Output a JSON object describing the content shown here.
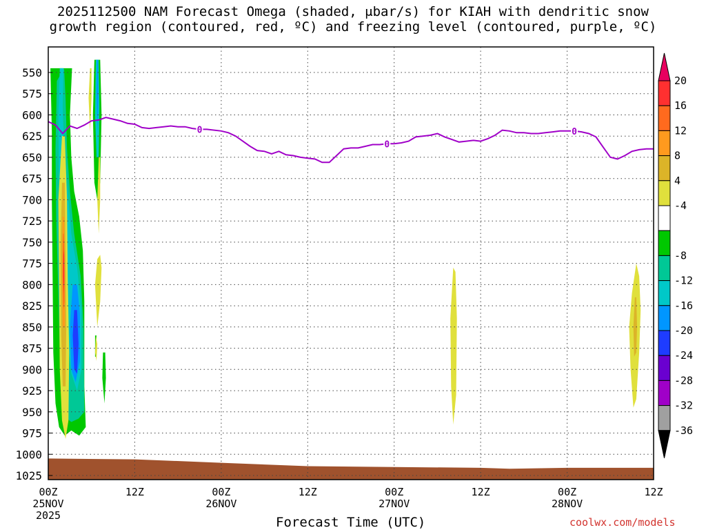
{
  "title_line1": "2025112500 NAM Forecast Omega (shaded, μbar/s) for KIAH with dendritic snow",
  "title_line2": "growth region (contoured, red, ºC) and freezing level (contoured, purple, ºC)",
  "xlabel": "Forecast Time (UTC)",
  "credit": "coolwx.com/models",
  "colors": {
    "freezing_level": "#a000c8",
    "ground": "#a0522d",
    "grid": "#9a9a9a"
  },
  "chart_data": {
    "type": "heatmap",
    "y_axis": {
      "label": "",
      "scale": "pressure (reversed)",
      "range_hpa": [
        1035,
        530
      ],
      "ticks": [
        "550",
        "575",
        "600",
        "625",
        "650",
        "675",
        "700",
        "725",
        "750",
        "775",
        "800",
        "825",
        "850",
        "875",
        "900",
        "925",
        "950",
        "975",
        "1000",
        "1025"
      ]
    },
    "x_axis": {
      "range_hours": [
        0,
        84
      ],
      "ticks": [
        {
          "h": 0,
          "l1": "00Z",
          "l2": "25NOV",
          "l3": "2025"
        },
        {
          "h": 12,
          "l1": "12Z",
          "l2": "",
          "l3": ""
        },
        {
          "h": 24,
          "l1": "00Z",
          "l2": "26NOV",
          "l3": ""
        },
        {
          "h": 36,
          "l1": "12Z",
          "l2": "",
          "l3": ""
        },
        {
          "h": 48,
          "l1": "00Z",
          "l2": "27NOV",
          "l3": ""
        },
        {
          "h": 60,
          "l1": "12Z",
          "l2": "",
          "l3": ""
        },
        {
          "h": 72,
          "l1": "00Z",
          "l2": "28NOV",
          "l3": ""
        },
        {
          "h": 84,
          "l1": "12Z",
          "l2": "",
          "l3": ""
        }
      ]
    },
    "colorbar": {
      "labels": [
        "20",
        "16",
        "12",
        "8",
        "4",
        "-4",
        "-8",
        "-12",
        "-16",
        "-20",
        "-24",
        "-28",
        "-32",
        "-36"
      ],
      "colors": [
        "#e8005f",
        "#ff3030",
        "#ff6a1e",
        "#ff9a1e",
        "#dcb428",
        "#e0e03c",
        "#ffffff",
        "#00c800",
        "#00c896",
        "#00c8c8",
        "#0096ff",
        "#1e3cff",
        "#6a00d0",
        "#a000c8",
        "#a0a0a0",
        "#000000"
      ]
    },
    "freezing_level": {
      "label": "0",
      "label_hours": [
        21,
        47,
        73
      ],
      "points": [
        [
          0,
          608
        ],
        [
          1,
          612
        ],
        [
          2,
          622
        ],
        [
          3,
          613
        ],
        [
          4,
          616
        ],
        [
          5,
          612
        ],
        [
          6,
          607
        ],
        [
          7,
          606
        ],
        [
          8,
          603
        ],
        [
          9,
          605
        ],
        [
          10,
          607
        ],
        [
          11,
          610
        ],
        [
          12,
          611
        ],
        [
          13,
          615
        ],
        [
          14,
          616
        ],
        [
          15,
          615
        ],
        [
          16,
          614
        ],
        [
          17,
          613
        ],
        [
          18,
          614
        ],
        [
          19,
          614
        ],
        [
          20,
          616
        ],
        [
          21,
          617
        ],
        [
          22,
          617
        ],
        [
          24,
          619
        ],
        [
          25,
          621
        ],
        [
          26,
          625
        ],
        [
          27,
          631
        ],
        [
          28,
          637
        ],
        [
          29,
          642
        ],
        [
          30,
          643
        ],
        [
          31,
          646
        ],
        [
          32,
          643
        ],
        [
          33,
          647
        ],
        [
          34,
          648
        ],
        [
          35,
          650
        ],
        [
          36,
          651
        ],
        [
          37,
          652
        ],
        [
          38,
          656
        ],
        [
          39,
          656
        ],
        [
          40,
          648
        ],
        [
          41,
          640
        ],
        [
          42,
          639
        ],
        [
          43,
          639
        ],
        [
          44,
          637
        ],
        [
          45,
          635
        ],
        [
          46,
          635
        ],
        [
          47,
          634
        ],
        [
          48,
          634
        ],
        [
          49,
          633
        ],
        [
          50,
          631
        ],
        [
          51,
          626
        ],
        [
          52,
          625
        ],
        [
          53,
          624
        ],
        [
          54,
          622
        ],
        [
          55,
          626
        ],
        [
          56,
          629
        ],
        [
          57,
          632
        ],
        [
          58,
          631
        ],
        [
          59,
          630
        ],
        [
          60,
          631
        ],
        [
          61,
          628
        ],
        [
          62,
          624
        ],
        [
          63,
          618
        ],
        [
          64,
          619
        ],
        [
          65,
          621
        ],
        [
          66,
          621
        ],
        [
          67,
          622
        ],
        [
          68,
          622
        ],
        [
          69,
          621
        ],
        [
          70,
          620
        ],
        [
          71,
          619
        ],
        [
          72,
          619
        ],
        [
          73,
          619
        ],
        [
          74,
          620
        ],
        [
          75,
          622
        ],
        [
          76,
          626
        ],
        [
          77,
          638
        ],
        [
          78,
          650
        ],
        [
          79,
          652
        ],
        [
          80,
          648
        ],
        [
          81,
          643
        ],
        [
          82,
          641
        ],
        [
          83,
          640
        ],
        [
          84,
          640
        ]
      ]
    },
    "ground_pressure": [
      [
        0,
        1005
      ],
      [
        12,
        1006
      ],
      [
        24,
        1010
      ],
      [
        36,
        1014
      ],
      [
        48,
        1015
      ],
      [
        60,
        1016
      ],
      [
        64,
        1017
      ],
      [
        72,
        1016
      ],
      [
        84,
        1016
      ]
    ],
    "omega_regions": [
      {
        "level": -8,
        "color": "#00c800",
        "pts": [
          [
            0.3,
            545
          ],
          [
            0.5,
            620
          ],
          [
            0.5,
            700
          ],
          [
            0.6,
            790
          ],
          [
            0.7,
            880
          ],
          [
            1.0,
            940
          ],
          [
            1.5,
            968
          ],
          [
            2.3,
            978
          ],
          [
            3.2,
            972
          ],
          [
            4.3,
            978
          ],
          [
            5.2,
            968
          ],
          [
            5.0,
            920
          ],
          [
            5.0,
            820
          ],
          [
            4.8,
            760
          ],
          [
            4.3,
            720
          ],
          [
            3.6,
            690
          ],
          [
            3.2,
            650
          ],
          [
            3.0,
            600
          ],
          [
            3.3,
            545
          ]
        ]
      },
      {
        "level": -12,
        "color": "#00c896",
        "pts": [
          [
            1.2,
            560
          ],
          [
            1.0,
            640
          ],
          [
            1.1,
            720
          ],
          [
            1.4,
            810
          ],
          [
            1.6,
            880
          ],
          [
            2.2,
            955
          ],
          [
            3.2,
            962
          ],
          [
            4.2,
            958
          ],
          [
            5.0,
            950
          ],
          [
            4.9,
            850
          ],
          [
            4.5,
            790
          ],
          [
            3.6,
            740
          ],
          [
            3.0,
            690
          ],
          [
            2.6,
            640
          ],
          [
            2.4,
            580
          ],
          [
            2.2,
            545
          ]
        ]
      },
      {
        "level": -16,
        "color": "#00c8c8",
        "pts": [
          [
            1.6,
            545
          ],
          [
            1.4,
            600
          ],
          [
            1.5,
            680
          ],
          [
            2.0,
            760
          ],
          [
            2.4,
            840
          ],
          [
            3.2,
            905
          ],
          [
            4.0,
            925
          ],
          [
            4.6,
            900
          ],
          [
            4.6,
            830
          ],
          [
            4.0,
            780
          ],
          [
            3.2,
            740
          ],
          [
            2.7,
            690
          ],
          [
            2.2,
            640
          ],
          [
            2.0,
            590
          ],
          [
            2.1,
            545
          ]
        ]
      },
      {
        "level": -20,
        "color": "#0096ff",
        "pts": [
          [
            3.4,
            800
          ],
          [
            3.0,
            850
          ],
          [
            3.2,
            900
          ],
          [
            3.8,
            915
          ],
          [
            4.4,
            890
          ],
          [
            4.4,
            835
          ],
          [
            4.0,
            800
          ]
        ]
      },
      {
        "level": -24,
        "color": "#1e3cff",
        "pts": [
          [
            3.6,
            830
          ],
          [
            3.4,
            860
          ],
          [
            3.6,
            900
          ],
          [
            4.0,
            905
          ],
          [
            4.2,
            870
          ],
          [
            4.0,
            830
          ]
        ]
      },
      {
        "level": -8,
        "color": "#00c800",
        "pts": [
          [
            6.4,
            535
          ],
          [
            6.2,
            600
          ],
          [
            6.4,
            680
          ],
          [
            6.8,
            700
          ],
          [
            7.2,
            680
          ],
          [
            7.4,
            600
          ],
          [
            7.2,
            535
          ]
        ]
      },
      {
        "level": -16,
        "color": "#00c8c8",
        "pts": [
          [
            6.6,
            535
          ],
          [
            6.5,
            600
          ],
          [
            6.7,
            650
          ],
          [
            7.0,
            650
          ],
          [
            7.1,
            590
          ],
          [
            7.0,
            535
          ]
        ]
      },
      {
        "level": -20,
        "color": "#0096ff",
        "pts": [
          [
            6.75,
            535
          ],
          [
            6.7,
            580
          ],
          [
            6.85,
            620
          ],
          [
            6.95,
            580
          ],
          [
            6.9,
            535
          ]
        ]
      },
      {
        "level": -8,
        "color": "#00c800",
        "pts": [
          [
            7.6,
            880
          ],
          [
            7.5,
            910
          ],
          [
            7.8,
            940
          ],
          [
            8.0,
            910
          ],
          [
            7.9,
            880
          ]
        ]
      },
      {
        "level": -8,
        "color": "#00c800",
        "pts": [
          [
            6.5,
            860
          ],
          [
            6.5,
            885
          ],
          [
            6.7,
            885
          ],
          [
            6.7,
            860
          ]
        ]
      },
      {
        "level": 4,
        "color": "#e0e03c",
        "pts": [
          [
            1.9,
            625
          ],
          [
            1.4,
            700
          ],
          [
            1.5,
            800
          ],
          [
            1.6,
            900
          ],
          [
            1.9,
            960
          ],
          [
            2.4,
            982
          ],
          [
            2.8,
            960
          ],
          [
            2.9,
            880
          ],
          [
            2.7,
            790
          ],
          [
            2.6,
            700
          ],
          [
            2.3,
            625
          ]
        ]
      },
      {
        "level": 8,
        "color": "#dcb428",
        "pts": [
          [
            1.9,
            680
          ],
          [
            1.7,
            760
          ],
          [
            1.8,
            860
          ],
          [
            2.0,
            920
          ],
          [
            2.4,
            920
          ],
          [
            2.5,
            850
          ],
          [
            2.4,
            760
          ],
          [
            2.3,
            680
          ]
        ]
      },
      {
        "level": 12,
        "color": "#ff9a1e",
        "pts": [
          [
            2.0,
            720
          ],
          [
            1.9,
            790
          ],
          [
            2.0,
            850
          ],
          [
            2.3,
            850
          ],
          [
            2.3,
            790
          ],
          [
            2.2,
            720
          ]
        ]
      },
      {
        "level": 16,
        "color": "#ff6a1e",
        "pts": [
          [
            2.05,
            740
          ],
          [
            2.0,
            790
          ],
          [
            2.1,
            830
          ],
          [
            2.25,
            820
          ],
          [
            2.25,
            770
          ],
          [
            2.15,
            740
          ]
        ]
      },
      {
        "level": 20,
        "color": "#ff3030",
        "pts": [
          [
            2.1,
            760
          ],
          [
            2.08,
            790
          ],
          [
            2.15,
            810
          ],
          [
            2.22,
            795
          ],
          [
            2.2,
            765
          ]
        ]
      },
      {
        "level": 4,
        "color": "#e0e03c",
        "pts": [
          [
            5.8,
            545
          ],
          [
            5.6,
            580
          ],
          [
            5.8,
            620
          ],
          [
            6.0,
            580
          ],
          [
            6.0,
            545
          ]
        ]
      },
      {
        "level": 4,
        "color": "#e0e03c",
        "pts": [
          [
            7.0,
            650
          ],
          [
            6.8,
            700
          ],
          [
            7.0,
            740
          ],
          [
            7.2,
            700
          ],
          [
            7.2,
            650
          ]
        ]
      },
      {
        "level": 4,
        "color": "#e0e03c",
        "pts": [
          [
            6.8,
            770
          ],
          [
            6.5,
            800
          ],
          [
            6.8,
            850
          ],
          [
            7.2,
            820
          ],
          [
            7.4,
            780
          ],
          [
            7.2,
            765
          ]
        ]
      },
      {
        "level": 4,
        "color": "#e0e03c",
        "pts": [
          [
            6.6,
            860
          ],
          [
            6.5,
            880
          ],
          [
            6.7,
            890
          ],
          [
            6.8,
            870
          ]
        ]
      },
      {
        "level": 4,
        "color": "#e0e03c",
        "pts": [
          [
            56.2,
            780
          ],
          [
            55.8,
            840
          ],
          [
            55.9,
            920
          ],
          [
            56.2,
            965
          ],
          [
            56.6,
            930
          ],
          [
            56.7,
            840
          ],
          [
            56.5,
            785
          ]
        ]
      },
      {
        "level": 4,
        "color": "#e0e03c",
        "pts": [
          [
            81.6,
            775
          ],
          [
            81.0,
            810
          ],
          [
            80.6,
            850
          ],
          [
            80.8,
            900
          ],
          [
            81.2,
            945
          ],
          [
            81.6,
            935
          ],
          [
            82.0,
            880
          ],
          [
            82.2,
            830
          ],
          [
            82.0,
            790
          ]
        ]
      },
      {
        "level": 8,
        "color": "#dcb428",
        "pts": [
          [
            81.4,
            815
          ],
          [
            81.2,
            850
          ],
          [
            81.3,
            885
          ],
          [
            81.6,
            880
          ],
          [
            81.7,
            850
          ],
          [
            81.6,
            815
          ]
        ]
      }
    ]
  }
}
